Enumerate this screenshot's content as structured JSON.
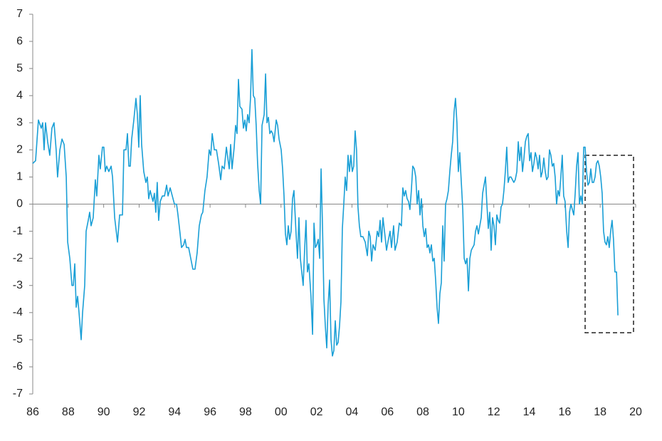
{
  "chart_data": {
    "type": "line",
    "color": "#1a9fd6",
    "x": [
      1986.0,
      1986.16,
      1986.32,
      1986.48,
      1986.56,
      1986.64,
      1986.72,
      1986.84,
      1986.96,
      1987.08,
      1987.2,
      1987.32,
      1987.4,
      1987.53,
      1987.65,
      1987.77,
      1987.89,
      1987.97,
      1988.09,
      1988.21,
      1988.29,
      1988.37,
      1988.45,
      1988.53,
      1988.61,
      1988.73,
      1988.81,
      1988.93,
      1989.01,
      1989.13,
      1989.21,
      1989.29,
      1989.41,
      1989.53,
      1989.61,
      1989.73,
      1989.81,
      1989.93,
      1990.01,
      1990.09,
      1990.17,
      1990.29,
      1990.42,
      1990.5,
      1990.62,
      1990.78,
      1990.9,
      1991.06,
      1991.14,
      1991.26,
      1991.34,
      1991.42,
      1991.5,
      1991.58,
      1991.7,
      1991.82,
      1991.9,
      1991.98,
      1992.06,
      1992.14,
      1992.26,
      1992.38,
      1992.46,
      1992.54,
      1992.62,
      1992.7,
      1992.78,
      1992.86,
      1992.94,
      1993.02,
      1993.1,
      1993.19,
      1993.31,
      1993.43,
      1993.55,
      1993.63,
      1993.75,
      1993.87,
      1993.99,
      1994.11,
      1994.19,
      1994.31,
      1994.39,
      1994.51,
      1994.59,
      1994.67,
      1994.79,
      1994.91,
      1995.03,
      1995.15,
      1995.27,
      1995.39,
      1995.51,
      1995.59,
      1995.71,
      1995.83,
      1995.95,
      1996.04,
      1996.12,
      1996.24,
      1996.36,
      1996.48,
      1996.6,
      1996.68,
      1996.8,
      1996.92,
      1997.0,
      1997.08,
      1997.16,
      1997.24,
      1997.36,
      1997.44,
      1997.52,
      1997.6,
      1997.68,
      1997.8,
      1997.88,
      1997.96,
      1998.04,
      1998.12,
      1998.2,
      1998.28,
      1998.36,
      1998.44,
      1998.52,
      1998.6,
      1998.68,
      1998.77,
      1998.85,
      1998.93,
      1999.05,
      1999.13,
      1999.21,
      1999.29,
      1999.37,
      1999.45,
      1999.53,
      1999.61,
      1999.73,
      1999.81,
      1999.89,
      2000.01,
      2000.09,
      2000.17,
      2000.25,
      2000.33,
      2000.41,
      2000.49,
      2000.57,
      2000.65,
      2000.73,
      2000.85,
      2000.93,
      2001.01,
      2001.09,
      2001.17,
      2001.25,
      2001.33,
      2001.41,
      2001.49,
      2001.57,
      2001.69,
      2001.78,
      2001.86,
      2001.94,
      2002.02,
      2002.1,
      2002.18,
      2002.26,
      2002.34,
      2002.42,
      2002.5,
      2002.58,
      2002.66,
      2002.74,
      2002.82,
      2002.9,
      2002.98,
      2003.06,
      2003.14,
      2003.22,
      2003.3,
      2003.38,
      2003.46,
      2003.54,
      2003.62,
      2003.7,
      2003.78,
      2003.86,
      2003.94,
      2004.02,
      2004.1,
      2004.18,
      2004.26,
      2004.34,
      2004.42,
      2004.5,
      2004.62,
      2004.75,
      2004.87,
      2004.95,
      2005.03,
      2005.11,
      2005.19,
      2005.31,
      2005.43,
      2005.51,
      2005.59,
      2005.67,
      2005.75,
      2005.87,
      2005.95,
      2006.03,
      2006.15,
      2006.23,
      2006.35,
      2006.43,
      2006.55,
      2006.67,
      2006.79,
      2006.87,
      2006.95,
      2007.03,
      2007.11,
      2007.19,
      2007.27,
      2007.35,
      2007.43,
      2007.52,
      2007.6,
      2007.68,
      2007.76,
      2007.84,
      2007.92,
      2008.0,
      2008.08,
      2008.16,
      2008.24,
      2008.32,
      2008.4,
      2008.48,
      2008.56,
      2008.64,
      2008.72,
      2008.8,
      2008.88,
      2008.96,
      2009.04,
      2009.12,
      2009.2,
      2009.28,
      2009.36,
      2009.44,
      2009.52,
      2009.6,
      2009.68,
      2009.76,
      2009.84,
      2009.92,
      2010.0,
      2010.08,
      2010.16,
      2010.25,
      2010.33,
      2010.41,
      2010.49,
      2010.57,
      2010.65,
      2010.73,
      2010.81,
      2010.89,
      2010.97,
      2011.05,
      2011.13,
      2011.21,
      2011.29,
      2011.37,
      2011.45,
      2011.53,
      2011.61,
      2011.69,
      2011.77,
      2011.85,
      2011.93,
      2012.01,
      2012.09,
      2012.17,
      2012.25,
      2012.33,
      2012.41,
      2012.49,
      2012.57,
      2012.65,
      2012.73,
      2012.81,
      2012.89,
      2012.97,
      2013.05,
      2013.13,
      2013.21,
      2013.3,
      2013.38,
      2013.46,
      2013.54,
      2013.62,
      2013.7,
      2013.78,
      2013.86,
      2013.94,
      2014.02,
      2014.1,
      2014.18,
      2014.26,
      2014.34,
      2014.42,
      2014.5,
      2014.58,
      2014.66,
      2014.74,
      2014.82,
      2014.9,
      2014.98,
      2015.06,
      2015.14,
      2015.22,
      2015.3,
      2015.38,
      2015.46,
      2015.54,
      2015.62,
      2015.7,
      2015.78,
      2015.86,
      2015.94,
      2016.02,
      2016.11,
      2016.19,
      2016.27,
      2016.35,
      2016.43,
      2016.51,
      2016.59,
      2016.67,
      2016.75,
      2016.83,
      2016.91,
      2016.99,
      2017.07,
      2017.15,
      2017.23,
      2017.31,
      2017.39,
      2017.47,
      2017.55,
      2017.63,
      2017.71,
      2017.79,
      2017.87,
      2017.95,
      2018.03,
      2018.11,
      2018.19,
      2018.27,
      2018.35,
      2018.43,
      2018.51,
      2018.59,
      2018.67,
      2018.75,
      2018.83,
      2018.92,
      2019.0
    ],
    "values": [
      1.5,
      1.6,
      3.1,
      2.8,
      3.0,
      2.0,
      3.0,
      2.3,
      1.8,
      2.8,
      3.0,
      2.0,
      1.0,
      2.0,
      2.4,
      2.2,
      1.0,
      -1.4,
      -2.0,
      -3.0,
      -3.0,
      -2.2,
      -3.8,
      -3.4,
      -4.0,
      -5.0,
      -4.0,
      -3.0,
      -1.0,
      -0.6,
      -0.3,
      -0.8,
      -0.5,
      0.9,
      0.3,
      1.8,
      1.3,
      2.1,
      2.1,
      1.2,
      1.4,
      1.2,
      1.4,
      1.0,
      -0.5,
      -1.4,
      -0.4,
      -0.4,
      2.0,
      2.0,
      2.6,
      1.4,
      1.4,
      2.4,
      3.1,
      3.9,
      3.3,
      2.1,
      4.0,
      2.2,
      1.2,
      0.8,
      1.0,
      0.2,
      0.5,
      0.3,
      0.1,
      0.4,
      -0.3,
      0.8,
      -0.6,
      0.1,
      0.3,
      0.3,
      0.7,
      0.3,
      0.6,
      0.3,
      0.0,
      0.0,
      -0.4,
      -1.1,
      -1.6,
      -1.5,
      -1.3,
      -1.6,
      -1.6,
      -2.0,
      -2.4,
      -2.4,
      -1.8,
      -0.8,
      -0.4,
      -0.3,
      0.5,
      1.0,
      2.0,
      1.8,
      2.6,
      2.0,
      2.0,
      1.5,
      0.9,
      1.4,
      1.3,
      2.1,
      1.7,
      1.3,
      2.2,
      1.3,
      2.1,
      2.9,
      2.6,
      4.6,
      3.6,
      3.5,
      2.8,
      3.1,
      2.7,
      3.3,
      3.0,
      3.9,
      5.7,
      4.0,
      3.9,
      2.9,
      1.5,
      0.5,
      0.0,
      2.9,
      3.3,
      4.8,
      3.0,
      3.2,
      2.6,
      2.7,
      2.6,
      2.3,
      3.1,
      2.9,
      2.4,
      2.0,
      1.3,
      0.3,
      -1.1,
      -1.5,
      -0.8,
      -1.3,
      -1.0,
      0.2,
      0.5,
      -1.1,
      -2.0,
      -0.5,
      -2.0,
      -2.5,
      -3.0,
      -1.7,
      -0.6,
      -2.5,
      -2.2,
      -3.4,
      -4.8,
      -0.7,
      -1.6,
      -1.5,
      -1.3,
      -2.0,
      1.3,
      -0.8,
      -3.5,
      -4.5,
      -5.3,
      -3.7,
      -2.8,
      -5.0,
      -5.6,
      -5.4,
      -4.3,
      -5.2,
      -5.1,
      -4.5,
      -3.6,
      -0.9,
      0.0,
      1.0,
      0.5,
      1.8,
      1.2,
      1.8,
      1.2,
      1.4,
      2.7,
      2.0,
      -0.1,
      -0.8,
      -1.2,
      -1.2,
      -1.4,
      -1.9,
      -1.0,
      -1.2,
      -2.1,
      -1.5,
      -1.7,
      -1.0,
      -1.2,
      -0.6,
      -1.4,
      -0.5,
      -1.2,
      -1.7,
      -1.4,
      -1.0,
      -1.6,
      -0.8,
      -1.7,
      -1.4,
      -0.7,
      -0.8,
      0.6,
      0.3,
      0.5,
      0.2,
      0.1,
      -0.2,
      0.5,
      1.4,
      1.3,
      1.0,
      0.0,
      0.5,
      -0.4,
      0.2,
      -0.8,
      -1.2,
      -0.9,
      -1.6,
      -1.5,
      -1.8,
      -1.5,
      -2.1,
      -2.0,
      -2.8,
      -3.8,
      -4.4,
      -3.3,
      -2.9,
      -0.8,
      -2.1,
      0.0,
      0.2,
      0.5,
      1.2,
      1.8,
      2.3,
      3.4,
      3.9,
      3.0,
      1.2,
      1.9,
      0.9,
      -0.2,
      -2.0,
      -2.2,
      -2.0,
      -3.2,
      -2.0,
      -1.7,
      -1.6,
      -1.5,
      -1.0,
      -0.8,
      -1.1,
      -0.8,
      -0.5,
      0.4,
      0.7,
      1.0,
      0.0,
      -0.9,
      -0.3,
      -1.7,
      -0.5,
      -0.8,
      -1.5,
      -0.4,
      -0.6,
      -0.7,
      -0.1,
      0.0,
      0.5,
      1.2,
      2.1,
      0.8,
      1.0,
      1.0,
      0.9,
      0.8,
      0.9,
      1.2,
      2.3,
      1.6,
      2.1,
      1.2,
      1.7,
      2.3,
      2.5,
      2.6,
      1.6,
      1.9,
      1.2,
      1.5,
      1.9,
      1.7,
      1.3,
      1.8,
      1.0,
      1.2,
      1.7,
      1.2,
      0.9,
      1.0,
      2.0,
      1.8,
      1.4,
      1.5,
      1.0,
      0.0,
      0.5,
      0.3,
      1.0,
      1.8,
      0.3,
      0.1,
      -1.0,
      -1.6,
      -0.3,
      0.0,
      -0.2,
      -0.4,
      0.4,
      1.4,
      1.9,
      0.0,
      0.3,
      0.0,
      2.1,
      2.1,
      1.2,
      0.7,
      0.8,
      1.3,
      0.8,
      0.8,
      1.0,
      1.5,
      1.6,
      1.4,
      1.0,
      0.4,
      -1.0,
      -1.4,
      -1.5,
      -1.2,
      -1.6,
      -1.0,
      -0.6,
      -1.3,
      -2.5,
      -2.5,
      -4.1
    ],
    "xlim": [
      1986,
      2020
    ],
    "xticks": [
      {
        "value": 1986,
        "label": "86"
      },
      {
        "value": 1988,
        "label": "88"
      },
      {
        "value": 1990,
        "label": "90"
      },
      {
        "value": 1992,
        "label": "92"
      },
      {
        "value": 1994,
        "label": "94"
      },
      {
        "value": 1996,
        "label": "96"
      },
      {
        "value": 1998,
        "label": "98"
      },
      {
        "value": 2000,
        "label": "00"
      },
      {
        "value": 2002,
        "label": "02"
      },
      {
        "value": 2004,
        "label": "04"
      },
      {
        "value": 2006,
        "label": "06"
      },
      {
        "value": 2008,
        "label": "08"
      },
      {
        "value": 2010,
        "label": "10"
      },
      {
        "value": 2012,
        "label": "12"
      },
      {
        "value": 2014,
        "label": "14"
      },
      {
        "value": 2016,
        "label": "16"
      },
      {
        "value": 2018,
        "label": "18"
      },
      {
        "value": 2020,
        "label": "20"
      }
    ],
    "ylim": [
      -7,
      7
    ],
    "yticks": [
      -7,
      -6,
      -5,
      -4,
      -3,
      -2,
      -1,
      0,
      1,
      2,
      3,
      4,
      5,
      6,
      7
    ]
  }
}
